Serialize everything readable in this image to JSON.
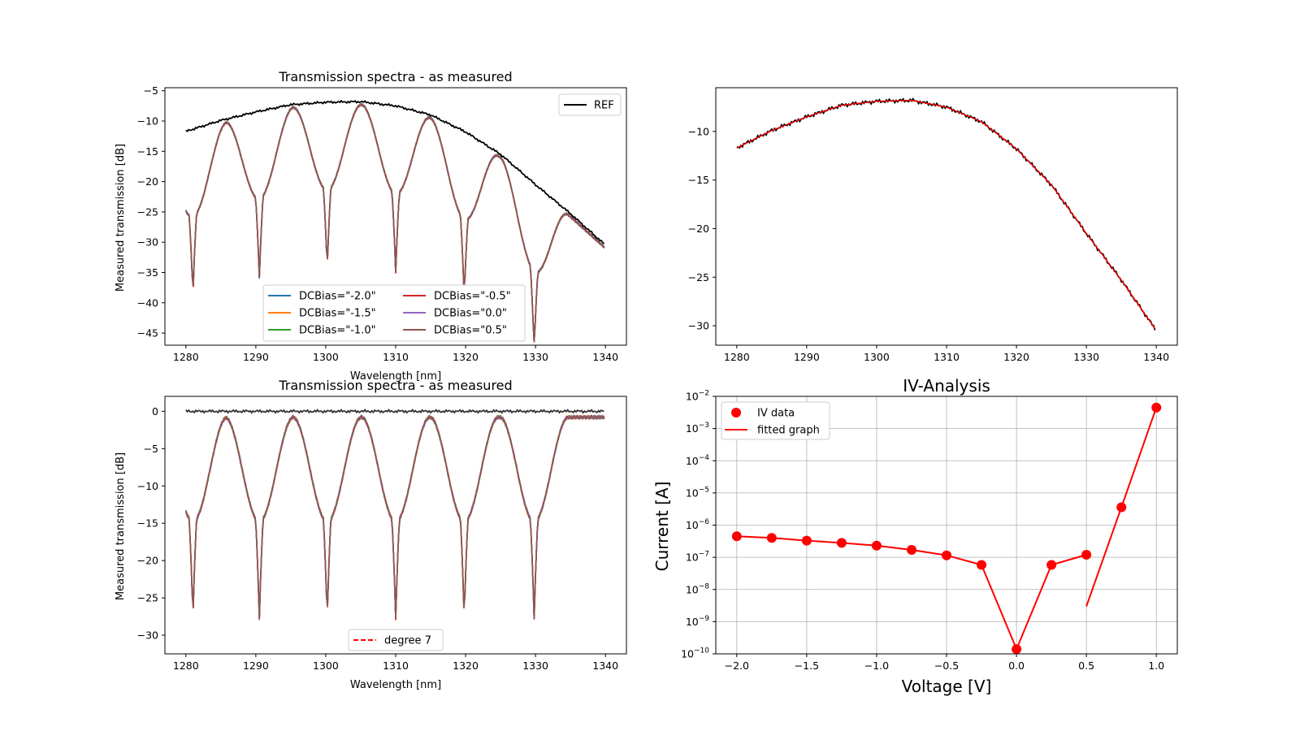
{
  "chart_data": [
    {
      "id": "tl",
      "type": "line",
      "title": "Transmission spectra - as measured",
      "xlabel": "Wavelength [nm]",
      "ylabel": "Measured transmission [dB]",
      "xlim": [
        1277,
        1343
      ],
      "ylim": [
        -47,
        -4.5
      ],
      "xticks": [
        1280,
        1290,
        1300,
        1310,
        1320,
        1330,
        1340
      ],
      "yticks": [
        -45,
        -40,
        -35,
        -30,
        -25,
        -20,
        -15,
        -10,
        -5
      ],
      "ref_series": {
        "name": "REF",
        "color": "#000000",
        "x": [
          1280,
          1285,
          1290,
          1295,
          1300,
          1305,
          1310,
          1315,
          1320,
          1325,
          1330,
          1335,
          1340
        ],
        "y": [
          -11.7,
          -9.9,
          -8.5,
          -7.3,
          -6.9,
          -6.8,
          -7.5,
          -9.0,
          -11.8,
          -15.5,
          -20.5,
          -25.3,
          -30.5
        ]
      },
      "series": [
        {
          "name": "DCBias=\"-2.0\"",
          "color": "#1f77b4"
        },
        {
          "name": "DCBias=\"-1.5\"",
          "color": "#ff7f0e"
        },
        {
          "name": "DCBias=\"-1.0\"",
          "color": "#2ca02c"
        },
        {
          "name": "DCBias=\"-0.5\"",
          "color": "#d62728"
        },
        {
          "name": "DCBias=\"0.0\"",
          "color": "#9467bd"
        },
        {
          "name": "DCBias=\"0.5\"",
          "color": "#8c564b"
        }
      ],
      "notch_wavelengths": [
        1281,
        1290.5,
        1300.2,
        1310,
        1319.8,
        1329.8
      ],
      "legend_ref_loc": "upper right",
      "legend_loc": "lower center",
      "grid": false
    },
    {
      "id": "tr",
      "type": "line",
      "title": "",
      "xlim": [
        1277,
        1343
      ],
      "ylim": [
        -32,
        -5.5
      ],
      "xticks": [
        1280,
        1290,
        1300,
        1310,
        1320,
        1330,
        1340
      ],
      "yticks": [
        -30,
        -25,
        -20,
        -15,
        -10
      ],
      "series": [
        {
          "color": "#000000",
          "note": "measured reference"
        },
        {
          "color": "#ff0000",
          "note": "polynomial fit"
        }
      ],
      "grid": false
    },
    {
      "id": "bl",
      "type": "line",
      "title": "Transmission spectra - as measured",
      "xlabel": "Wavelength [nm]",
      "ylabel": "Measured transmission [dB]",
      "xlim": [
        1277,
        1343
      ],
      "ylim": [
        -32.5,
        2
      ],
      "xticks": [
        1280,
        1290,
        1300,
        1310,
        1320,
        1330,
        1340
      ],
      "yticks": [
        -30,
        -25,
        -20,
        -15,
        -10,
        -5,
        0
      ],
      "legend": [
        {
          "name": "degree 7",
          "color": "#ff0000",
          "dash": true
        }
      ],
      "legend_loc": "lower center",
      "grid": false
    },
    {
      "id": "br",
      "type": "scatter",
      "title": "IV-Analysis",
      "xlabel": "Voltage [V]",
      "ylabel": "Current [A]",
      "yscale": "log",
      "xlim": [
        -2.15,
        1.15
      ],
      "ylim": [
        1e-10,
        0.01
      ],
      "xticks": [
        -2.0,
        -1.5,
        -1.0,
        -0.5,
        0.0,
        0.5,
        1.0
      ],
      "yticks_exp": [
        -10,
        -9,
        -8,
        -7,
        -6,
        -5,
        -4,
        -3,
        -2
      ],
      "iv_data": {
        "name": "IV data",
        "x": [
          -2.0,
          -1.75,
          -1.5,
          -1.25,
          -1.0,
          -0.75,
          -0.5,
          -0.25,
          0.0,
          0.25,
          0.5,
          0.75,
          1.0
        ],
        "y": [
          4.5e-07,
          4e-07,
          3.3e-07,
          2.8e-07,
          2.3e-07,
          1.7e-07,
          1.15e-07,
          5.8e-08,
          1.4e-10,
          5.8e-08,
          1.2e-07,
          3.6e-06,
          0.0045
        ]
      },
      "fitted": {
        "name": "fitted graph",
        "segment1_x": [
          -2.0,
          -1.75,
          -1.5,
          -1.25,
          -1.0,
          -0.75,
          -0.5,
          -0.25,
          0.0,
          0.25,
          0.5
        ],
        "segment1_y": [
          4.5e-07,
          4e-07,
          3.3e-07,
          2.8e-07,
          2.3e-07,
          1.7e-07,
          1.15e-07,
          5.8e-08,
          1.4e-10,
          5.8e-08,
          1.2e-07
        ],
        "segment2_x": [
          0.5,
          0.75,
          1.0
        ],
        "segment2_y": [
          3e-09,
          3.6e-06,
          0.0045
        ]
      },
      "legend_loc": "upper left",
      "grid": true,
      "colors": {
        "points": "#ff0000",
        "line": "#ff0000"
      }
    }
  ]
}
